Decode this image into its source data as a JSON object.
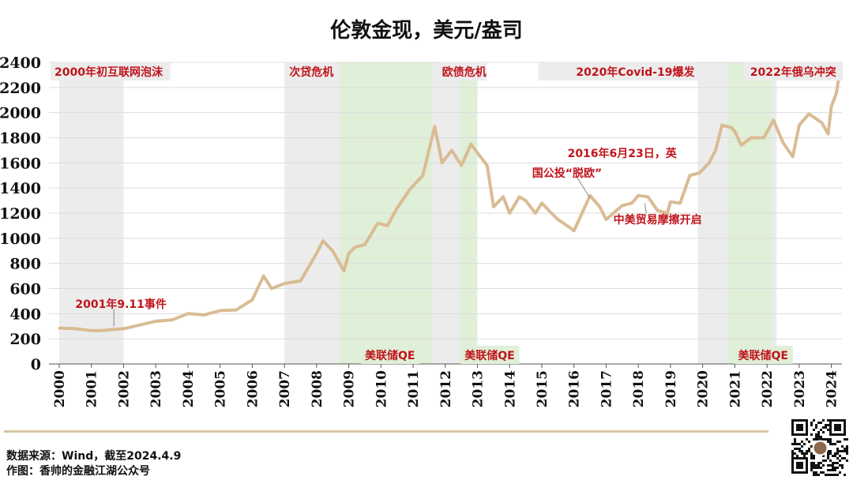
{
  "chart_data": {
    "type": "line",
    "title": "伦敦金现，美元/盎司",
    "ylim": [
      0,
      2400
    ],
    "yticks": [
      0,
      200,
      400,
      600,
      800,
      1000,
      1200,
      1400,
      1600,
      1800,
      2000,
      2200,
      2400
    ],
    "xticks": [
      "2000",
      "2001",
      "2002",
      "2003",
      "2004",
      "2005",
      "2006",
      "2007",
      "2008",
      "2009",
      "2010",
      "2011",
      "2012",
      "2013",
      "2014",
      "2015",
      "2016",
      "2017",
      "2018",
      "2019",
      "2020",
      "2021",
      "2022",
      "2023",
      "2024"
    ],
    "xlim": [
      2000.0,
      2024.28
    ],
    "grid": "horizontal",
    "line_color": "#d9bc94",
    "series": [
      {
        "x": [
          2000.0,
          2000.5,
          2001.0,
          2001.3,
          2001.7,
          2002.0,
          2002.5,
          2003.0,
          2003.5,
          2004.0,
          2004.5,
          2005.0,
          2005.5,
          2006.0,
          2006.35,
          2006.6,
          2007.0,
          2007.5,
          2008.0,
          2008.2,
          2008.5,
          2008.85,
          2009.0,
          2009.2,
          2009.5,
          2009.9,
          2010.2,
          2010.5,
          2010.9,
          2011.3,
          2011.67,
          2011.9,
          2012.2,
          2012.5,
          2012.8,
          2013.0,
          2013.3,
          2013.5,
          2013.8,
          2014.0,
          2014.3,
          2014.5,
          2014.8,
          2015.0,
          2015.3,
          2015.5,
          2015.9,
          2016.0,
          2016.5,
          2016.8,
          2017.0,
          2017.5,
          2017.8,
          2018.0,
          2018.3,
          2018.6,
          2018.9,
          2019.0,
          2019.3,
          2019.6,
          2019.9,
          2020.2,
          2020.4,
          2020.6,
          2020.9,
          2021.0,
          2021.2,
          2021.5,
          2021.9,
          2022.2,
          2022.5,
          2022.8,
          2023.0,
          2023.3,
          2023.7,
          2023.9,
          2024.0,
          2024.15,
          2024.27
        ],
        "y": [
          285,
          280,
          265,
          265,
          275,
          280,
          310,
          340,
          350,
          400,
          390,
          425,
          430,
          510,
          700,
          600,
          640,
          660,
          880,
          980,
          900,
          740,
          880,
          930,
          950,
          1120,
          1100,
          1240,
          1390,
          1500,
          1890,
          1600,
          1700,
          1580,
          1750,
          1680,
          1580,
          1250,
          1330,
          1200,
          1330,
          1300,
          1200,
          1280,
          1200,
          1150,
          1080,
          1060,
          1340,
          1250,
          1150,
          1260,
          1280,
          1340,
          1330,
          1220,
          1200,
          1290,
          1280,
          1500,
          1520,
          1600,
          1700,
          1900,
          1880,
          1850,
          1740,
          1800,
          1800,
          1940,
          1760,
          1650,
          1900,
          1990,
          1920,
          1830,
          2050,
          2150,
          2330
        ]
      }
    ],
    "shaded_gray": [
      {
        "label": "2000年初互联网泡沫",
        "start": 2000.0,
        "end": 2002.0
      },
      {
        "label": "次贷危机",
        "start": 2007.0,
        "end": 2008.7
      },
      {
        "label": "欧债危机",
        "start": 2011.6,
        "end": 2012.45
      },
      {
        "label": "2020年Covid-19爆发",
        "start": 2019.85,
        "end": 2020.75
      },
      {
        "label": "2022年俄乌冲突",
        "start": 2022.15,
        "end": 2022.3
      }
    ],
    "shaded_green": [
      {
        "label": "美联储QE",
        "start": 2008.7,
        "end": 2011.6
      },
      {
        "label": "美联储QE",
        "start": 2012.45,
        "end": 2013.0
      },
      {
        "label": "美联储QE",
        "start": 2020.75,
        "end": 2022.15
      }
    ],
    "annotations": [
      {
        "label": "2001年9.11事件",
        "x": 2001.7,
        "y": 285
      },
      {
        "label": "2016年6月23日，英\n国公投“脱欧”",
        "x": 2016.5,
        "y": 1320
      },
      {
        "label": "中美贸易摩擦开启",
        "x": 2018.2,
        "y": 1280
      }
    ]
  },
  "footer": {
    "source": "数据来源：Wind，截至2024.4.9",
    "author": "作图：香帅的金融江湖公众号"
  }
}
